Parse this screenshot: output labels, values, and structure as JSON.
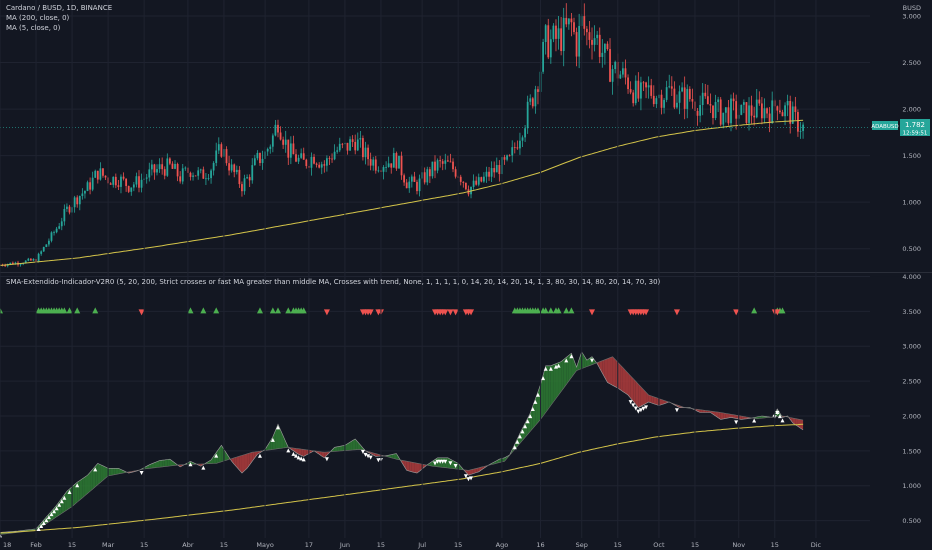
{
  "header": {
    "symbol_line": "Cardano / BUSD, 1D, BINANCE",
    "ma200_line": "MA (200, close, 0)",
    "ma5_line": "MA (5, close, 0)",
    "currency": "BUSD"
  },
  "indicator": {
    "title": "SMA-Extendido-Indicador-V2R0 (5, 20, 200, Strict crosses or fast MA greater than middle MA, Crosses with trend, None, 1, 1, 1, 1, 0, 14, 20, 14, 20, 14, 1, 3, 80, 30, 14, 80, 20, 14, 70, 30)"
  },
  "price_tag": {
    "symbol": "ADABUSD",
    "price": "1.782",
    "countdown": "12:59:51"
  },
  "colors": {
    "background": "#131722",
    "up": "#26a69a",
    "down": "#ef5350",
    "ma200": "#d4c44a",
    "fill_bull": "#2e7d32",
    "fill_bear": "#b23c3c",
    "grid": "#1f2330",
    "signal_buy": "#4caf50",
    "signal_sell": "#ef5350"
  },
  "x_axis": {
    "ticks": [
      {
        "label": "18",
        "day": 0
      },
      {
        "label": "Feb",
        "day": 14
      },
      {
        "label": "15",
        "day": 28
      },
      {
        "label": "Mar",
        "day": 42
      },
      {
        "label": "15",
        "day": 56
      },
      {
        "label": "Abr",
        "day": 73
      },
      {
        "label": "15",
        "day": 87
      },
      {
        "label": "Mayo",
        "day": 103
      },
      {
        "label": "17",
        "day": 120
      },
      {
        "label": "Jun",
        "day": 134
      },
      {
        "label": "15",
        "day": 148
      },
      {
        "label": "Jul",
        "day": 164
      },
      {
        "label": "15",
        "day": 178
      },
      {
        "label": "Ago",
        "day": 195
      },
      {
        "label": "16",
        "day": 210
      },
      {
        "label": "Sep",
        "day": 226
      },
      {
        "label": "15",
        "day": 240
      },
      {
        "label": "Oct",
        "day": 256
      },
      {
        "label": "15",
        "day": 270
      },
      {
        "label": "Nov",
        "day": 287
      },
      {
        "label": "15",
        "day": 301
      },
      {
        "label": "Dic",
        "day": 317
      }
    ]
  },
  "chart_data": [
    {
      "type": "candlestick",
      "title": "Cardano / BUSD, 1D, BINANCE",
      "x_unit": "days since 18 Jan",
      "ylim": [
        0.25,
        3.15
      ],
      "y_ticks": [
        "3.000",
        "2.500",
        "2.000",
        "1.500",
        "1.000",
        "0.500"
      ],
      "series": [
        {
          "name": "price",
          "x": [
            0,
            7,
            14,
            18,
            22,
            26,
            30,
            34,
            38,
            42,
            46,
            50,
            54,
            58,
            62,
            66,
            70,
            74,
            78,
            82,
            86,
            90,
            94,
            96,
            100,
            103,
            106,
            108,
            112,
            116,
            118,
            122,
            126,
            130,
            134,
            138,
            142,
            146,
            150,
            154,
            158,
            162,
            166,
            170,
            174,
            178,
            182,
            186,
            190,
            194,
            196,
            198,
            202,
            206,
            210,
            212,
            214,
            218,
            222,
            224,
            226,
            228,
            230,
            232,
            236,
            240,
            244,
            248,
            252,
            256,
            260,
            264,
            268,
            272,
            276,
            280,
            284,
            288,
            292,
            296,
            300,
            302,
            304,
            306,
            308,
            312
          ],
          "y": [
            0.33,
            0.35,
            0.38,
            0.55,
            0.72,
            0.92,
            1.05,
            1.15,
            1.32,
            1.25,
            1.25,
            1.18,
            1.22,
            1.3,
            1.36,
            1.38,
            1.27,
            1.35,
            1.28,
            1.37,
            1.58,
            1.35,
            1.18,
            1.25,
            1.45,
            1.52,
            1.7,
            1.88,
            1.55,
            1.45,
            1.42,
            1.5,
            1.4,
            1.55,
            1.58,
            1.67,
            1.5,
            1.42,
            1.43,
            1.46,
            1.22,
            1.18,
            1.3,
            1.4,
            1.4,
            1.32,
            1.15,
            1.2,
            1.3,
            1.38,
            1.4,
            1.44,
            1.75,
            2.04,
            2.45,
            2.72,
            2.72,
            2.78,
            2.9,
            2.7,
            2.92,
            2.8,
            2.85,
            2.75,
            2.48,
            2.4,
            2.3,
            2.12,
            2.2,
            2.15,
            2.2,
            2.12,
            2.12,
            2.05,
            2.05,
            1.95,
            1.98,
            1.95,
            1.97,
            2.0,
            1.98,
            2.1,
            1.98,
            2.0,
            1.9,
            1.8
          ]
        },
        {
          "name": "MA (200, close, 0)",
          "x": [
            0,
            30,
            60,
            90,
            120,
            150,
            180,
            195,
            210,
            225,
            240,
            255,
            270,
            285,
            300,
            312
          ],
          "y": [
            0.32,
            0.4,
            0.52,
            0.65,
            0.8,
            0.95,
            1.1,
            1.2,
            1.32,
            1.48,
            1.6,
            1.7,
            1.77,
            1.82,
            1.86,
            1.88
          ]
        }
      ]
    },
    {
      "type": "area",
      "title": "SMA-Extendido-Indicador-V2R0",
      "ylim": [
        0.25,
        4.05
      ],
      "y_ticks": [
        "4.000",
        "3.500",
        "3.000",
        "2.500",
        "2.000",
        "1.500",
        "1.000",
        "0.500"
      ],
      "series": [
        {
          "name": "fast",
          "x": [
            0,
            7,
            14,
            18,
            22,
            26,
            30,
            34,
            38,
            42,
            46,
            50,
            54,
            58,
            62,
            66,
            70,
            74,
            78,
            82,
            86,
            90,
            94,
            96,
            100,
            103,
            106,
            108,
            112,
            116,
            118,
            122,
            126,
            130,
            134,
            138,
            142,
            146,
            150,
            154,
            158,
            162,
            166,
            170,
            174,
            178,
            182,
            186,
            190,
            194,
            196,
            198,
            202,
            206,
            210,
            212,
            214,
            218,
            222,
            224,
            226,
            228,
            230,
            232,
            236,
            240,
            244,
            248,
            252,
            256,
            260,
            264,
            268,
            272,
            276,
            280,
            284,
            288,
            292,
            296,
            300,
            302,
            304,
            306,
            308,
            312
          ],
          "y": [
            0.33,
            0.35,
            0.38,
            0.55,
            0.72,
            0.92,
            1.05,
            1.15,
            1.32,
            1.25,
            1.25,
            1.18,
            1.22,
            1.3,
            1.36,
            1.38,
            1.27,
            1.35,
            1.28,
            1.37,
            1.58,
            1.35,
            1.18,
            1.25,
            1.45,
            1.52,
            1.7,
            1.88,
            1.55,
            1.45,
            1.42,
            1.5,
            1.4,
            1.55,
            1.58,
            1.67,
            1.5,
            1.42,
            1.43,
            1.46,
            1.22,
            1.18,
            1.3,
            1.4,
            1.4,
            1.32,
            1.15,
            1.2,
            1.3,
            1.38,
            1.4,
            1.44,
            1.75,
            2.04,
            2.45,
            2.72,
            2.72,
            2.78,
            2.9,
            2.7,
            2.92,
            2.8,
            2.85,
            2.75,
            2.48,
            2.4,
            2.3,
            2.12,
            2.2,
            2.15,
            2.2,
            2.12,
            2.12,
            2.05,
            2.05,
            1.95,
            1.98,
            1.95,
            1.97,
            2.0,
            1.98,
            2.1,
            1.98,
            2.0,
            1.9,
            1.8
          ]
        },
        {
          "name": "slow",
          "x": [
            0,
            14,
            28,
            42,
            56,
            70,
            84,
            98,
            112,
            126,
            140,
            154,
            168,
            182,
            196,
            210,
            224,
            238,
            252,
            266,
            280,
            294,
            304,
            312
          ],
          "y": [
            0.3,
            0.36,
            0.7,
            1.14,
            1.24,
            1.3,
            1.32,
            1.48,
            1.55,
            1.48,
            1.52,
            1.38,
            1.28,
            1.22,
            1.35,
            1.95,
            2.65,
            2.85,
            2.3,
            2.12,
            2.05,
            1.96,
            2.0,
            1.94
          ]
        },
        {
          "name": "MA 200",
          "x": [
            0,
            30,
            60,
            90,
            120,
            150,
            180,
            195,
            210,
            225,
            240,
            255,
            270,
            285,
            300,
            312
          ],
          "y": [
            0.32,
            0.4,
            0.52,
            0.65,
            0.8,
            0.95,
            1.1,
            1.2,
            1.32,
            1.48,
            1.6,
            1.7,
            1.77,
            1.82,
            1.86,
            1.88
          ]
        }
      ],
      "signals": {
        "buy_days": [
          0,
          15,
          16,
          17,
          18,
          19,
          20,
          21,
          22,
          23,
          24,
          25,
          27,
          30,
          37,
          74,
          79,
          84,
          101,
          106,
          108,
          112,
          114,
          115,
          116,
          117,
          118,
          200,
          201,
          202,
          203,
          204,
          205,
          206,
          207,
          208,
          209,
          211,
          212,
          214,
          216,
          217,
          220,
          222,
          293,
          302,
          303,
          304
        ],
        "sell_days": [
          55,
          127,
          141,
          142,
          143,
          144,
          147,
          148,
          169,
          170,
          171,
          172,
          173,
          175,
          177,
          181,
          182,
          183,
          230,
          245,
          246,
          247,
          248,
          249,
          250,
          251,
          263,
          286,
          301,
          302
        ]
      }
    }
  ]
}
